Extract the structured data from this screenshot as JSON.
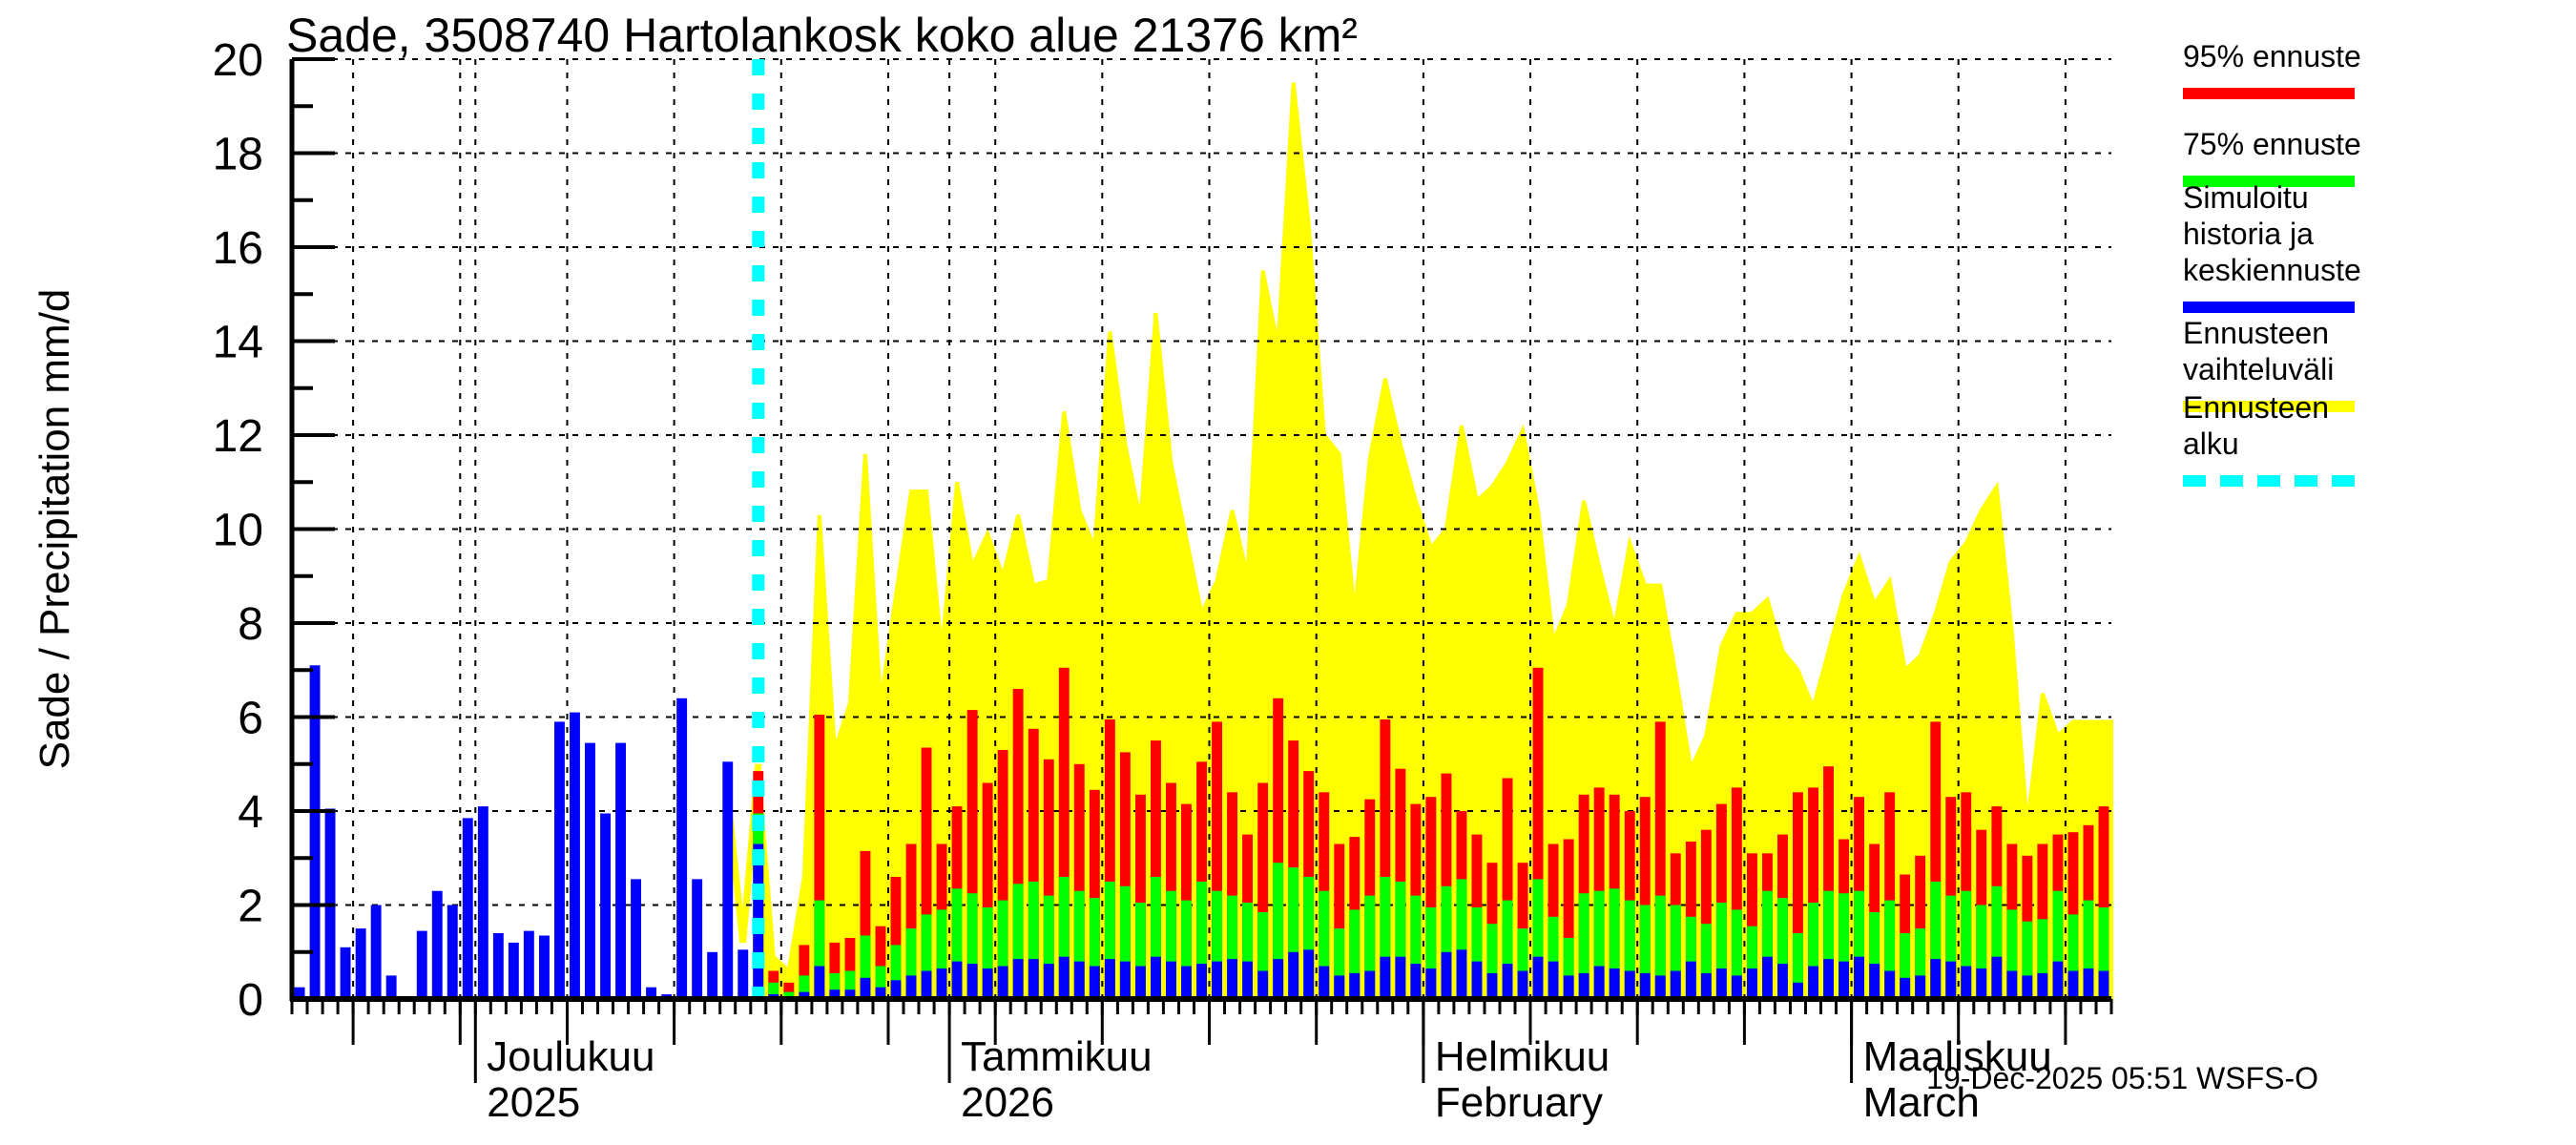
{
  "title": "Sade, 3508740 Hartolankosk koko alue 21376 km²",
  "footer": {
    "timestamp": "19-Dec-2025 05:51 WSFS-O"
  },
  "colors": {
    "p95": "#ff0000",
    "p75": "#00ff00",
    "history_mean": "#0000ff",
    "range": "#ffff00",
    "forecast_start": "#00ffff",
    "axis": "#000000",
    "background": "#ffffff"
  },
  "legend": [
    {
      "label": "95% ennuste",
      "swatch": "red-line"
    },
    {
      "label": "75% ennuste",
      "swatch": "green-line"
    },
    {
      "label": "Simuloitu historia ja\nkeskiennuste",
      "swatch": "blue-line"
    },
    {
      "label": "Ennusteen vaihteluväli",
      "swatch": "yellow-line"
    },
    {
      "label": "Ennusteen alku",
      "swatch": "cyan-dashed-line"
    }
  ],
  "chart_data": {
    "type": "bar",
    "title": "Sade, 3508740 Hartolankosk koko alue 21376 km²",
    "xlabel": "",
    "ylabel": "Sade / Precipitation  mm/d",
    "ylim": [
      0,
      20
    ],
    "y_ticks": [
      0,
      2,
      4,
      6,
      8,
      10,
      12,
      14,
      16,
      18,
      20
    ],
    "grid": true,
    "legend_position": "top-right",
    "start_date": "2025-11-19",
    "forecast_start_date": "2025-12-19",
    "end_date": "2026-03-17",
    "month_ticks": [
      {
        "label": "Joulukuu",
        "sublabel": "2025",
        "day_index": 12
      },
      {
        "label": "Tammikuu",
        "sublabel": "2026",
        "day_index": 43
      },
      {
        "label": "Helmikuu",
        "sublabel": "February",
        "day_index": 74
      },
      {
        "label": "Maaliskuu",
        "sublabel": "March",
        "day_index": 102
      }
    ],
    "week_tick_day_indices": [
      4,
      11,
      18,
      25,
      32,
      39,
      46,
      53,
      60,
      67,
      74,
      81,
      88,
      95,
      102,
      109,
      116
    ],
    "series": [
      {
        "name": "Simuloitu historia",
        "role": "history",
        "color": "#0000ff",
        "values": [
          0.25,
          7.1,
          4.05,
          1.1,
          1.5,
          2.0,
          0.5,
          0.05,
          1.45,
          2.3,
          2.0,
          3.85,
          4.1,
          1.4,
          1.2,
          1.45,
          1.35,
          5.9,
          6.1,
          5.45,
          3.95,
          5.45,
          2.55,
          0.25,
          0.1,
          6.4,
          2.55,
          1.0,
          5.05,
          1.05
        ]
      },
      {
        "name": "Ennusteen vaihteluväli (max)",
        "role": "forecast_range_max",
        "color": "#ffff00",
        "values": [
          5.0,
          0.9,
          0.6,
          2.6,
          10.3,
          5.3,
          6.3,
          11.6,
          6.3,
          8.6,
          10.8,
          10.8,
          7.4,
          11.0,
          9.2,
          9.9,
          9.0,
          10.3,
          8.8,
          8.9,
          12.5,
          10.4,
          9.6,
          14.2,
          11.8,
          10.2,
          14.6,
          11.4,
          9.8,
          8.2,
          8.9,
          10.4,
          9.0,
          15.5,
          13.9,
          19.5,
          16.5,
          12.0,
          11.6,
          8.2,
          11.5,
          13.2,
          11.8,
          10.6,
          9.6,
          10.0,
          12.2,
          10.6,
          10.9,
          11.4,
          12.1,
          10.4,
          7.6,
          8.4,
          10.6,
          9.2,
          7.9,
          9.7,
          8.8,
          8.8,
          6.9,
          4.9,
          5.6,
          7.5,
          8.2,
          8.2,
          8.5,
          7.4,
          7.0,
          6.2,
          7.4,
          8.6,
          9.4,
          8.4,
          8.9,
          7.0,
          7.3,
          8.2,
          9.3,
          9.7,
          10.4,
          10.9,
          7.8,
          3.7,
          6.5,
          5.6,
          5.9,
          5.9,
          5.9
        ]
      },
      {
        "name": "95% ennuste",
        "role": "forecast_p95",
        "color": "#ff0000",
        "values": [
          4.85,
          0.6,
          0.35,
          1.15,
          6.05,
          1.2,
          1.3,
          3.15,
          1.55,
          2.6,
          3.3,
          5.35,
          3.3,
          4.1,
          6.15,
          4.6,
          5.3,
          6.6,
          5.75,
          5.1,
          7.05,
          5.0,
          4.45,
          5.95,
          5.25,
          4.35,
          5.5,
          4.6,
          4.15,
          5.05,
          5.9,
          4.4,
          3.5,
          4.6,
          6.4,
          5.5,
          4.85,
          4.4,
          3.3,
          3.45,
          4.25,
          5.95,
          4.9,
          4.15,
          4.3,
          4.8,
          4.0,
          3.5,
          2.9,
          4.7,
          2.9,
          7.05,
          3.3,
          3.4,
          4.35,
          4.5,
          4.35,
          4.0,
          4.3,
          5.9,
          3.1,
          3.35,
          3.6,
          4.15,
          4.5,
          3.1,
          3.1,
          3.5,
          4.4,
          4.5,
          4.95,
          3.4,
          4.3,
          3.3,
          4.4,
          2.65,
          3.05,
          5.9,
          4.3,
          4.4,
          3.6,
          4.1,
          3.3,
          3.05,
          3.3,
          3.5,
          3.55,
          3.7,
          4.1
        ]
      },
      {
        "name": "75% ennuste",
        "role": "forecast_p75",
        "color": "#00ff00",
        "values": [
          3.95,
          0.35,
          0.15,
          0.5,
          2.1,
          0.55,
          0.6,
          1.35,
          0.7,
          1.15,
          1.5,
          1.8,
          1.9,
          2.35,
          2.25,
          1.95,
          2.1,
          2.45,
          2.5,
          2.2,
          2.6,
          2.3,
          2.15,
          2.5,
          2.4,
          2.05,
          2.6,
          2.3,
          2.1,
          2.5,
          2.3,
          2.2,
          2.05,
          1.85,
          2.9,
          2.8,
          2.6,
          2.3,
          1.5,
          1.9,
          2.2,
          2.6,
          2.5,
          2.2,
          1.95,
          2.4,
          2.55,
          1.95,
          1.6,
          2.1,
          1.5,
          2.55,
          1.75,
          1.3,
          2.25,
          2.3,
          2.35,
          2.1,
          2.0,
          2.2,
          2.0,
          1.75,
          1.6,
          2.05,
          1.9,
          1.55,
          2.3,
          2.15,
          1.4,
          2.05,
          2.3,
          2.25,
          2.3,
          1.85,
          2.1,
          1.4,
          1.5,
          2.5,
          2.2,
          2.3,
          2.0,
          2.4,
          1.9,
          1.65,
          1.7,
          2.3,
          1.8,
          2.1,
          1.95
        ]
      },
      {
        "name": "Keskiennuste",
        "role": "forecast_mean",
        "color": "#0000ff",
        "values": [
          3.3,
          0.1,
          0.05,
          0.15,
          0.7,
          0.2,
          0.2,
          0.45,
          0.25,
          0.4,
          0.5,
          0.6,
          0.65,
          0.8,
          0.75,
          0.65,
          0.7,
          0.85,
          0.85,
          0.75,
          0.9,
          0.8,
          0.7,
          0.85,
          0.8,
          0.7,
          0.9,
          0.8,
          0.7,
          0.75,
          0.8,
          0.85,
          0.8,
          0.6,
          0.85,
          1.0,
          1.05,
          0.7,
          0.5,
          0.55,
          0.6,
          0.9,
          0.9,
          0.75,
          0.65,
          1.0,
          1.05,
          0.8,
          0.55,
          0.75,
          0.6,
          0.9,
          0.8,
          0.5,
          0.55,
          0.7,
          0.65,
          0.6,
          0.55,
          0.5,
          0.6,
          0.8,
          0.55,
          0.65,
          0.5,
          0.65,
          0.9,
          0.75,
          0.35,
          0.7,
          0.85,
          0.8,
          0.9,
          0.75,
          0.6,
          0.45,
          0.5,
          0.85,
          0.8,
          0.7,
          0.65,
          0.9,
          0.6,
          0.5,
          0.55,
          0.8,
          0.6,
          0.65,
          0.6
        ]
      }
    ]
  }
}
